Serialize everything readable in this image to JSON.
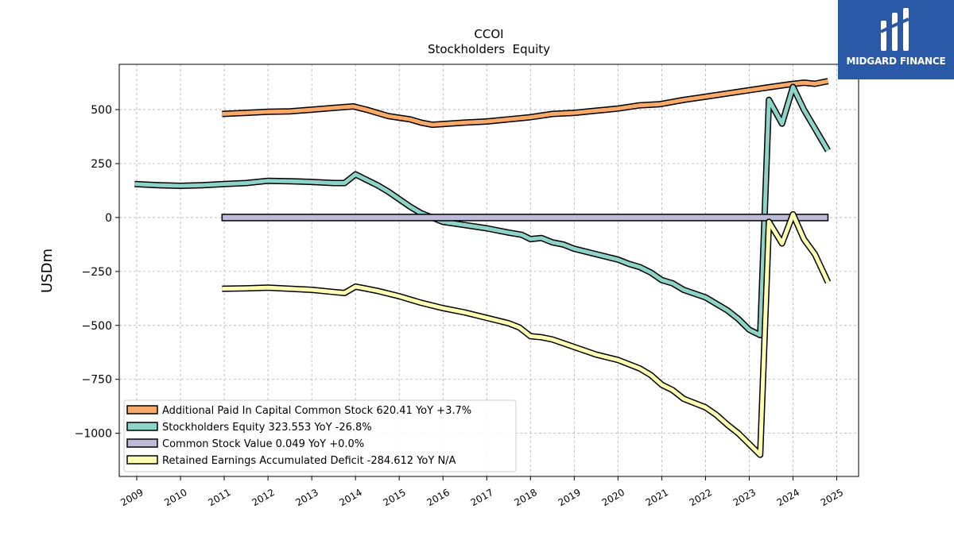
{
  "brand": {
    "name": "MIDGARD FINANCE",
    "color": "#2a59a8"
  },
  "chart_data": {
    "type": "line",
    "title": "CCOI",
    "subtitle": "Stockholders  Equity",
    "xlabel": "",
    "ylabel": "USDm",
    "xlim": [
      2008.6,
      2025.5
    ],
    "ylim": [
      -1200,
      710
    ],
    "grid": true,
    "legend_position": "lower-left",
    "x_ticks": [
      2009,
      2010,
      2011,
      2012,
      2013,
      2014,
      2015,
      2016,
      2017,
      2018,
      2019,
      2020,
      2021,
      2022,
      2023,
      2024,
      2025
    ],
    "x_tick_labels": [
      "2009",
      "2010",
      "2011",
      "2012",
      "2013",
      "2014",
      "2015",
      "2016",
      "2017",
      "2018",
      "2019",
      "2020",
      "2021",
      "2022",
      "2023",
      "2024",
      "2025"
    ],
    "y_ticks": [
      500,
      250,
      0,
      -250,
      -500,
      -750,
      -1000
    ],
    "y_tick_labels": [
      "500",
      "250",
      "0",
      "−250",
      "−500",
      "−750",
      "−1000"
    ],
    "series": [
      {
        "name": "Additional Paid In Capital Common Stock",
        "legend_label": "Additional Paid In Capital Common Stock  620.41 YoY +3.7%",
        "color": "#f9a968",
        "points": [
          [
            2010.95,
            480
          ],
          [
            2011.5,
            485
          ],
          [
            2012.0,
            490
          ],
          [
            2012.5,
            492
          ],
          [
            2013.0,
            500
          ],
          [
            2013.5,
            508
          ],
          [
            2013.95,
            515
          ],
          [
            2014.25,
            500
          ],
          [
            2014.75,
            470
          ],
          [
            2015.25,
            455
          ],
          [
            2015.5,
            440
          ],
          [
            2015.75,
            430
          ],
          [
            2016.5,
            440
          ],
          [
            2017.0,
            445
          ],
          [
            2017.5,
            455
          ],
          [
            2018.0,
            465
          ],
          [
            2018.5,
            480
          ],
          [
            2019.0,
            485
          ],
          [
            2019.5,
            495
          ],
          [
            2020.0,
            505
          ],
          [
            2020.5,
            520
          ],
          [
            2020.95,
            525
          ],
          [
            2021.5,
            545
          ],
          [
            2022.0,
            560
          ],
          [
            2022.5,
            575
          ],
          [
            2023.0,
            590
          ],
          [
            2023.5,
            605
          ],
          [
            2023.95,
            618
          ],
          [
            2024.25,
            625
          ],
          [
            2024.5,
            620
          ],
          [
            2024.8,
            632
          ]
        ]
      },
      {
        "name": "Stockholders Equity",
        "legend_label": "Stockholders Equity  323.553 YoY -26.8%",
        "color": "#8dd3c7",
        "points": [
          [
            2008.95,
            155
          ],
          [
            2009.5,
            150
          ],
          [
            2010.0,
            147
          ],
          [
            2010.5,
            150
          ],
          [
            2011.0,
            155
          ],
          [
            2011.5,
            160
          ],
          [
            2012.0,
            170
          ],
          [
            2012.5,
            168
          ],
          [
            2013.0,
            165
          ],
          [
            2013.5,
            160
          ],
          [
            2013.75,
            160
          ],
          [
            2014.0,
            200
          ],
          [
            2014.25,
            175
          ],
          [
            2014.5,
            150
          ],
          [
            2014.75,
            120
          ],
          [
            2015.0,
            85
          ],
          [
            2015.25,
            50
          ],
          [
            2015.5,
            20
          ],
          [
            2015.75,
            0
          ],
          [
            2016.0,
            -20
          ],
          [
            2016.5,
            -35
          ],
          [
            2017.0,
            -50
          ],
          [
            2017.5,
            -70
          ],
          [
            2017.8,
            -80
          ],
          [
            2018.0,
            -100
          ],
          [
            2018.25,
            -95
          ],
          [
            2018.5,
            -115
          ],
          [
            2018.75,
            -125
          ],
          [
            2019.0,
            -145
          ],
          [
            2019.5,
            -170
          ],
          [
            2020.0,
            -195
          ],
          [
            2020.25,
            -215
          ],
          [
            2020.5,
            -230
          ],
          [
            2020.75,
            -255
          ],
          [
            2021.0,
            -290
          ],
          [
            2021.25,
            -305
          ],
          [
            2021.5,
            -335
          ],
          [
            2022.0,
            -370
          ],
          [
            2022.5,
            -430
          ],
          [
            2022.75,
            -470
          ],
          [
            2023.0,
            -520
          ],
          [
            2023.25,
            -545
          ],
          [
            2023.45,
            545
          ],
          [
            2023.75,
            435
          ],
          [
            2024.0,
            605
          ],
          [
            2024.25,
            500
          ],
          [
            2024.8,
            310
          ]
        ]
      },
      {
        "name": "Common Stock Value",
        "legend_label": "Common Stock Value  0.049 YoY +0.0%",
        "color": "#bebada",
        "band": true,
        "points": [
          [
            2010.95,
            0.049
          ],
          [
            2024.8,
            0.049
          ]
        ]
      },
      {
        "name": "Retained Earnings Accumulated Deficit",
        "legend_label": "Retained Earnings Accumulated Deficit  -284.612 YoY N/A",
        "color": "#ffffb3",
        "points": [
          [
            2010.95,
            -330
          ],
          [
            2011.5,
            -328
          ],
          [
            2012.0,
            -325
          ],
          [
            2012.5,
            -330
          ],
          [
            2013.0,
            -335
          ],
          [
            2013.5,
            -345
          ],
          [
            2013.75,
            -350
          ],
          [
            2014.0,
            -320
          ],
          [
            2014.25,
            -330
          ],
          [
            2014.5,
            -340
          ],
          [
            2015.0,
            -365
          ],
          [
            2015.5,
            -395
          ],
          [
            2016.0,
            -420
          ],
          [
            2016.5,
            -440
          ],
          [
            2017.0,
            -465
          ],
          [
            2017.5,
            -490
          ],
          [
            2017.75,
            -510
          ],
          [
            2018.0,
            -550
          ],
          [
            2018.25,
            -555
          ],
          [
            2018.5,
            -565
          ],
          [
            2019.0,
            -600
          ],
          [
            2019.5,
            -635
          ],
          [
            2020.0,
            -660
          ],
          [
            2020.5,
            -700
          ],
          [
            2020.75,
            -730
          ],
          [
            2021.0,
            -775
          ],
          [
            2021.25,
            -800
          ],
          [
            2021.5,
            -840
          ],
          [
            2022.0,
            -880
          ],
          [
            2022.25,
            -915
          ],
          [
            2022.5,
            -960
          ],
          [
            2022.75,
            -1000
          ],
          [
            2023.0,
            -1050
          ],
          [
            2023.25,
            -1100
          ],
          [
            2023.45,
            -20
          ],
          [
            2023.75,
            -120
          ],
          [
            2024.0,
            15
          ],
          [
            2024.25,
            -100
          ],
          [
            2024.5,
            -170
          ],
          [
            2024.8,
            -300
          ]
        ]
      }
    ]
  }
}
